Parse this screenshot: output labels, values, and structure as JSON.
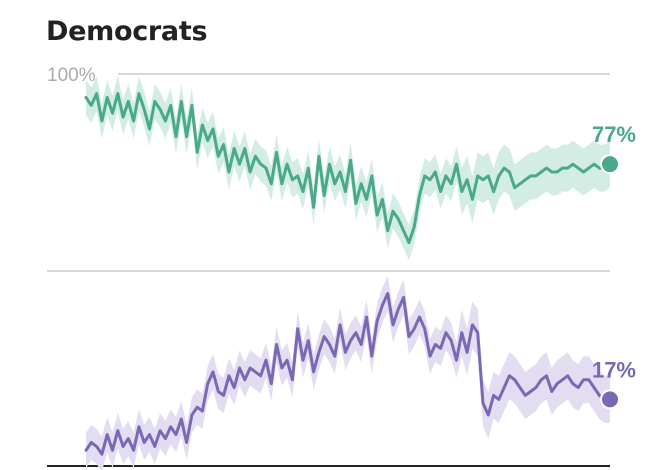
{
  "chart_data": {
    "type": "line",
    "title": "Democrats",
    "y_tick_label": "100%",
    "ylim": [
      0,
      100
    ],
    "colors": {
      "approve": "#4aa88b",
      "approve_band": "#d4ede4",
      "disapprove": "#7b68b5",
      "disapprove_band": "#e3ddf1",
      "gridline": "#cccccc",
      "baseline": "#222222",
      "tick_text": "#aaaaaa"
    },
    "series": [
      {
        "key": "approve",
        "end_label": "77%",
        "values": [
          94,
          92,
          95,
          88,
          94,
          90,
          95,
          89,
          93,
          88,
          95,
          91,
          86,
          93,
          91,
          88,
          92,
          84,
          93,
          84,
          92,
          80,
          87,
          83,
          86,
          79,
          82,
          75,
          81,
          77,
          81,
          75,
          79,
          77,
          76,
          72,
          80,
          72,
          77,
          73,
          74,
          70,
          76,
          66,
          79,
          69,
          77,
          72,
          75,
          70,
          78,
          67,
          72,
          68,
          74,
          64,
          68,
          60,
          65,
          63,
          60,
          57,
          61,
          69,
          74,
          73,
          75,
          70,
          74,
          72,
          77,
          70,
          73,
          68,
          74,
          73,
          74,
          70,
          74,
          76,
          75,
          71,
          72,
          73,
          74,
          74,
          75,
          76,
          75,
          75,
          76,
          76,
          77,
          76,
          75,
          76,
          77,
          76,
          76,
          77
        ]
      },
      {
        "key": "disapprove",
        "end_label": "17%",
        "values": [
          4,
          6,
          5,
          3,
          8,
          4,
          9,
          5,
          7,
          4,
          10,
          6,
          8,
          5,
          9,
          7,
          10,
          8,
          12,
          6,
          13,
          15,
          14,
          21,
          24,
          19,
          18,
          23,
          20,
          25,
          22,
          25,
          24,
          23,
          27,
          21,
          31,
          25,
          27,
          22,
          35,
          27,
          32,
          24,
          29,
          33,
          31,
          28,
          36,
          29,
          32,
          34,
          31,
          38,
          28,
          37,
          41,
          44,
          36,
          40,
          43,
          33,
          35,
          38,
          35,
          28,
          31,
          30,
          34,
          32,
          27,
          34,
          29,
          36,
          34,
          16,
          13,
          18,
          17,
          20,
          23,
          22,
          20,
          18,
          19,
          20,
          22,
          23,
          19,
          21,
          22,
          23,
          21,
          20,
          22,
          22,
          20,
          18,
          17,
          17
        ]
      }
    ]
  }
}
